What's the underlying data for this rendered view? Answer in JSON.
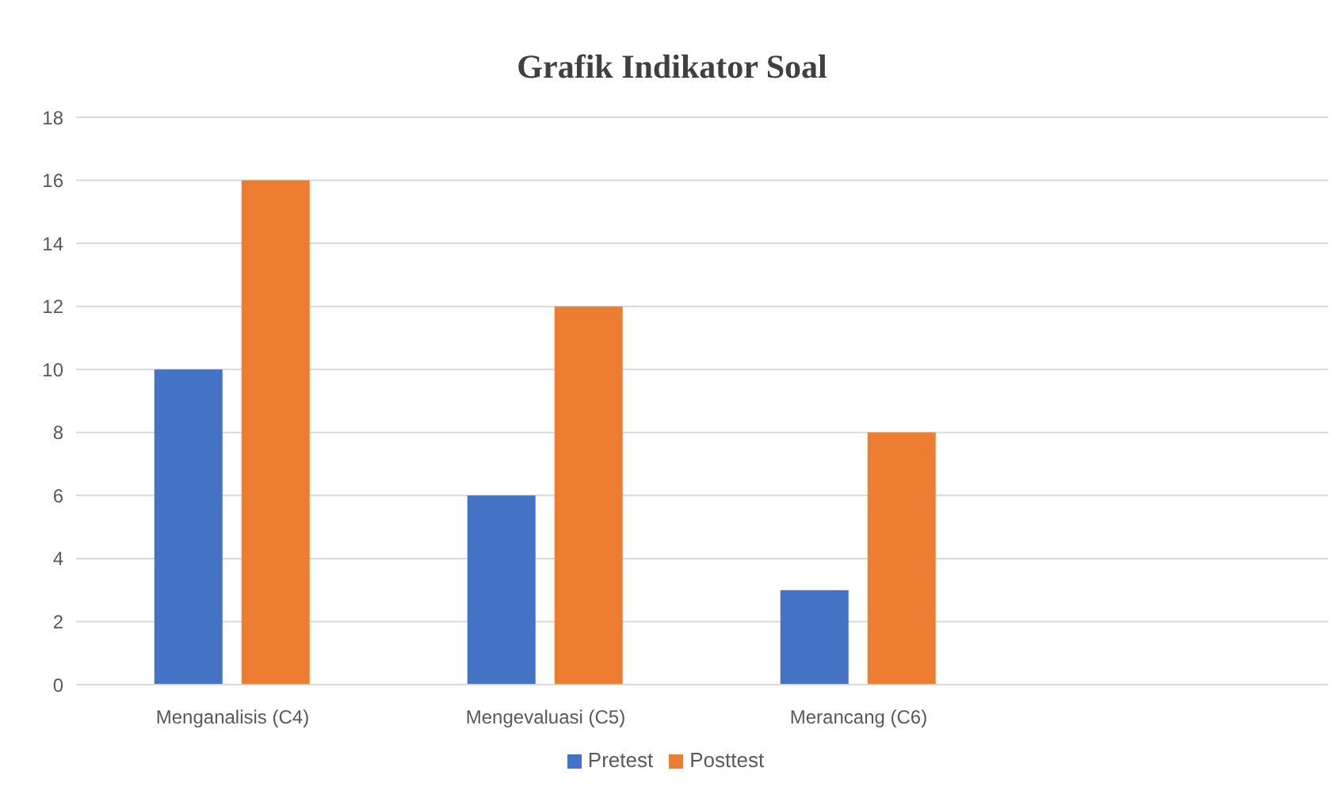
{
  "chart_data": {
    "type": "bar",
    "title": "Grafik Indikator Soal",
    "categories": [
      "Menganalisis (C4)",
      "Mengevaluasi (C5)",
      "Merancang (C6)",
      null
    ],
    "series": [
      {
        "name": "Pretest",
        "color": "#4472c4",
        "values": [
          10,
          6,
          3,
          null
        ]
      },
      {
        "name": "Posttest",
        "color": "#ed7d31",
        "values": [
          16,
          12,
          8,
          null
        ]
      }
    ],
    "ylim": [
      0,
      18
    ],
    "yticks": [
      0,
      2,
      4,
      6,
      8,
      10,
      12,
      14,
      16,
      18
    ],
    "grid": "y",
    "legend": "bottom"
  }
}
